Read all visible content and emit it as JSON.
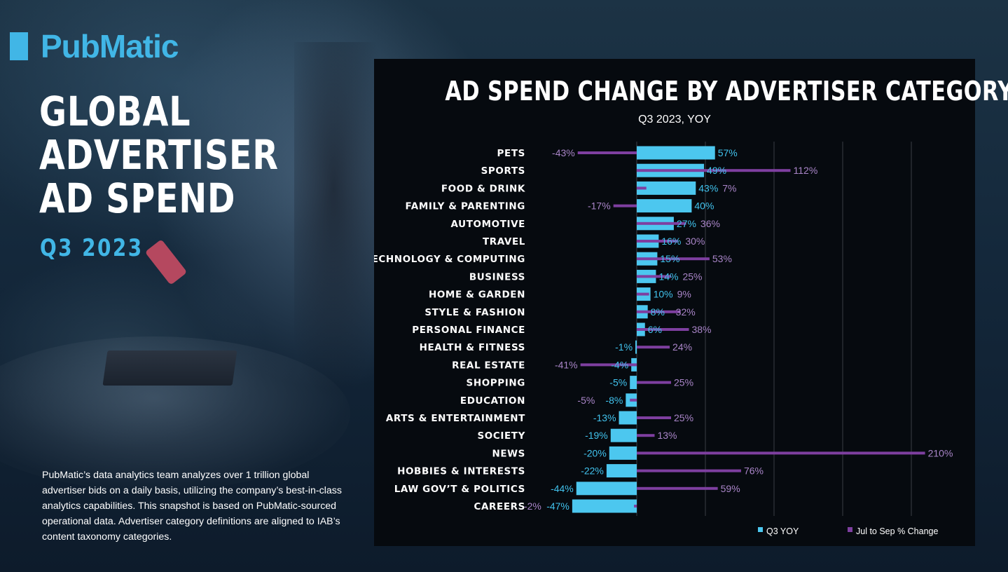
{
  "brand": {
    "name": "PubMatic",
    "accent": "#41b6e6"
  },
  "headline": {
    "line1": "GLOBAL",
    "line2": "ADVERTISER",
    "line3": "AD SPEND",
    "quarter": "Q3 2023"
  },
  "description": "PubMatic’s data analytics team analyzes over 1 trillion global advertiser bids on a daily basis, utilizing the company’s best-in-class analytics capabilities. This snapshot is based on PubMatic-sourced operational data. Advertiser category definitions are aligned to IAB’s content taxonomy categories.",
  "chart_data": {
    "type": "bar",
    "orientation": "horizontal",
    "title": "AD SPEND CHANGE BY ADVERTISER CATEGORY",
    "subtitle": "Q3 2023, YOY",
    "categories": [
      "PETS",
      "SPORTS",
      "FOOD & DRINK",
      "FAMILY & PARENTING",
      "AUTOMOTIVE",
      "TRAVEL",
      "TECHNOLOGY & COMPUTING",
      "BUSINESS",
      "HOME & GARDEN",
      "STYLE & FASHION",
      "PERSONAL FINANCE",
      "HEALTH & FITNESS",
      "REAL ESTATE",
      "SHOPPING",
      "EDUCATION",
      "ARTS & ENTERTAINMENT",
      "SOCIETY",
      "NEWS",
      "HOBBIES & INTERESTS",
      "LAW GOV’T & POLITICS",
      "CAREERS"
    ],
    "series": [
      {
        "name": "Q3 YOY",
        "color": "#4cc7ef",
        "values": [
          57,
          49,
          43,
          40,
          27,
          16,
          15,
          14,
          10,
          8,
          6,
          -1,
          -4,
          -5,
          -8,
          -13,
          -19,
          -20,
          -22,
          -44,
          -47
        ],
        "labels": [
          "57%",
          "49%",
          "43%",
          "40%",
          "27%",
          "16%",
          "15%",
          "14%",
          "10%",
          "8%",
          "6%",
          "-1%",
          "-4%",
          "-5%",
          "-8%",
          "-13%",
          "-19%",
          "-20%",
          "-22%",
          "-44%",
          "-47%"
        ]
      },
      {
        "name": "Jul to Sep % Change",
        "color": "#7e3fa0",
        "values": [
          -43,
          112,
          7,
          -17,
          36,
          30,
          53,
          25,
          9,
          32,
          38,
          24,
          -41,
          25,
          -5,
          25,
          13,
          210,
          76,
          59,
          -2
        ],
        "labels": [
          "-43%",
          "112%",
          "7%",
          "-17%",
          "36%",
          "30%",
          "53%",
          "25%",
          "9%",
          "32%",
          "38%",
          "24%",
          "-41%",
          "25%",
          "-5%",
          "25%",
          "13%",
          "210%",
          "76%",
          "59%",
          "-2%"
        ]
      }
    ],
    "grid": true,
    "legend_position": "bottom-right"
  }
}
